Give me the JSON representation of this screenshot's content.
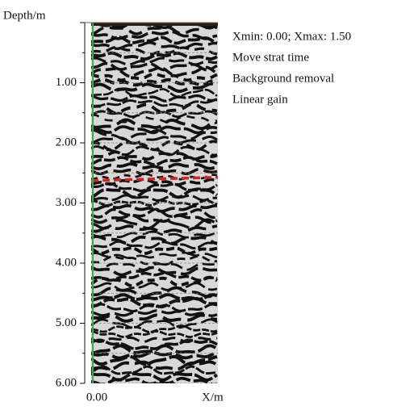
{
  "chart_data": {
    "type": "radargram",
    "y_label": "Depth/m",
    "x_label": "X/m",
    "annotations": [
      "Xmin: 0.00; Xmax: 1.50",
      "Move strat time",
      "Background removal",
      "Linear gain"
    ],
    "xlim": [
      0,
      1.5
    ],
    "xticks": [
      {
        "value": 0,
        "label": "0.00"
      }
    ],
    "ylim": [
      0,
      6
    ],
    "yticks": [
      {
        "value": 1,
        "label": "1.00"
      },
      {
        "value": 2,
        "label": "2.00"
      },
      {
        "value": 3,
        "label": "3.00"
      },
      {
        "value": 4,
        "label": "4.00"
      },
      {
        "value": 5,
        "label": "5.00"
      },
      {
        "value": 6,
        "label": "6.00"
      }
    ],
    "minor_yticks": [
      0.5,
      1.5,
      2.5,
      3.5,
      4.5,
      5.5
    ],
    "marker_depth": 2.6,
    "marker_color": "#e0201b",
    "grid": true
  }
}
